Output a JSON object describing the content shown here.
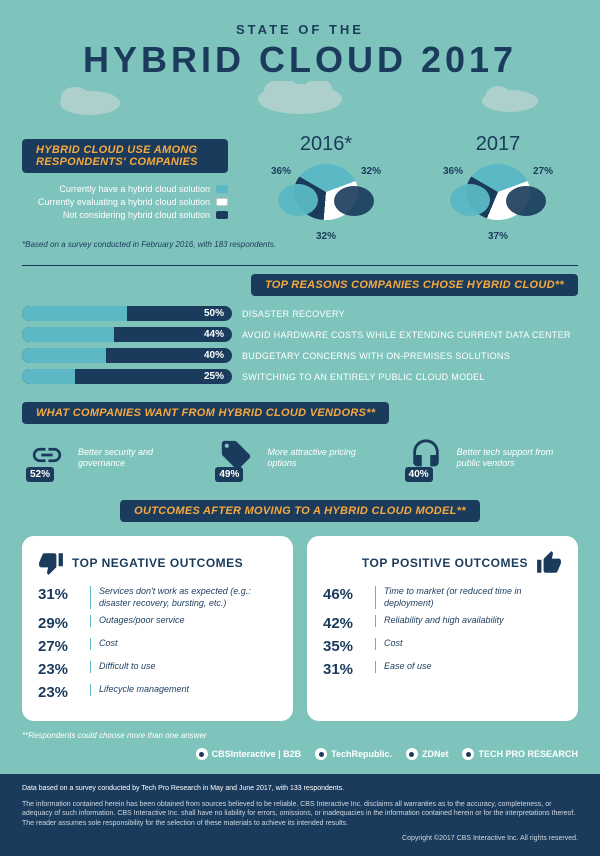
{
  "colors": {
    "bg": "#7fc4bc",
    "dark": "#1a3b5c",
    "accent": "#f7a93f",
    "bar_fill": "#5bb8c4",
    "white": "#ffffff",
    "cloud_gray": "#c8dcda"
  },
  "header": {
    "sup": "STATE OF THE",
    "title": "HYBRID CLOUD 2017"
  },
  "usage": {
    "banner": "HYBRID CLOUD USE AMONG RESPONDENTS' COMPANIES",
    "legend": [
      {
        "label": "Currently have a hybrid cloud solution",
        "color": "#5bb8c4"
      },
      {
        "label": "Currently evaluating a hybrid cloud solution",
        "color": "#ffffff"
      },
      {
        "label": "Not considering hybrid cloud solution",
        "color": "#1a3b5c"
      }
    ],
    "years": [
      {
        "year": "2016*",
        "slices": [
          {
            "pct": 36,
            "color": "#5bb8c4",
            "pos": "tl"
          },
          {
            "pct": 32,
            "color": "#ffffff",
            "pos": "b"
          },
          {
            "pct": 32,
            "color": "#1a3b5c",
            "pos": "tr"
          }
        ]
      },
      {
        "year": "2017",
        "slices": [
          {
            "pct": 36,
            "color": "#5bb8c4",
            "pos": "tl"
          },
          {
            "pct": 37,
            "color": "#ffffff",
            "pos": "b"
          },
          {
            "pct": 27,
            "color": "#1a3b5c",
            "pos": "tr"
          }
        ]
      }
    ],
    "footnote": "*Based on a survey conducted in February 2016, with 183 respondents."
  },
  "reasons": {
    "banner": "TOP REASONS COMPANIES CHOSE HYBRID CLOUD**",
    "bars": [
      {
        "pct": 50,
        "label": "DISASTER RECOVERY"
      },
      {
        "pct": 44,
        "label": "AVOID HARDWARE COSTS WHILE EXTENDING CURRENT DATA CENTER"
      },
      {
        "pct": 40,
        "label": "BUDGETARY CONCERNS WITH ON-PREMISES SOLUTIONS"
      },
      {
        "pct": 25,
        "label": "SWITCHING TO AN ENTIRELY PUBLIC CLOUD MODEL"
      }
    ]
  },
  "wants": {
    "banner": "WHAT COMPANIES WANT FROM HYBRID CLOUD VENDORS**",
    "items": [
      {
        "pct": "52%",
        "text": "Better security and governance",
        "icon": "chain"
      },
      {
        "pct": "49%",
        "text": "More attractive pricing options",
        "icon": "tag"
      },
      {
        "pct": "40%",
        "text": "Better tech support from public vendors",
        "icon": "headset"
      }
    ]
  },
  "outcomes": {
    "banner": "OUTCOMES AFTER MOVING TO A HYBRID CLOUD MODEL**",
    "negative": {
      "title": "TOP NEGATIVE OUTCOMES",
      "rows": [
        {
          "pct": "31%",
          "label": "Services don't work as expected (e.g.: disaster recovery, bursting, etc.)"
        },
        {
          "pct": "29%",
          "label": "Outages/poor service"
        },
        {
          "pct": "27%",
          "label": "Cost"
        },
        {
          "pct": "23%",
          "label": "Difficult to use"
        },
        {
          "pct": "23%",
          "label": "Lifecycle management"
        }
      ]
    },
    "positive": {
      "title": "TOP POSITIVE OUTCOMES",
      "rows": [
        {
          "pct": "46%",
          "label": "Time to market (or reduced time in deployment)"
        },
        {
          "pct": "42%",
          "label": "Reliability and high availability"
        },
        {
          "pct": "35%",
          "label": "Cost"
        },
        {
          "pct": "31%",
          "label": "Ease of use"
        }
      ]
    }
  },
  "disclaimer": "**Respondents could choose more than one answer",
  "logos": [
    "CBSInteractive | B2B",
    "TechRepublic.",
    "ZDNet",
    "TECH PRO RESEARCH"
  ],
  "footer": {
    "survey": "Data based on a survey conducted by Tech Pro Research in May and June 2017, with 133 respondents.",
    "legal": "The information contained herein has been obtained from sources believed to be reliable. CBS Interactive Inc. disclaims all warranties as to the accuracy, completeness, or adequacy of such information. CBS Interactive Inc. shall have no liability for errors, omissions, or inadequacies in the information contained herein or for the interpretations thereof. The reader assumes sole responsibility for the selection of these materials to achieve its intended results.",
    "copyright": "Copyright ©2017 CBS Interactive Inc. All rights reserved."
  }
}
